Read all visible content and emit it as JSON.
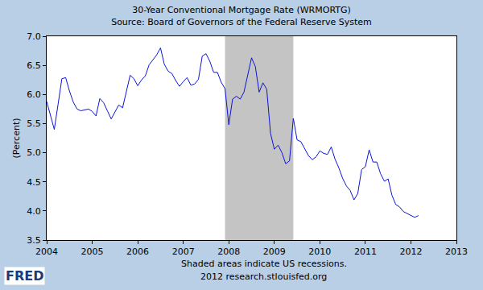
{
  "chart_data": {
    "type": "line",
    "title": "30-Year Conventional Mortgage Rate (WRMORTG)",
    "subtitle": "Source: Board of Governors of the Federal Reserve System",
    "y_label": "(Percent)",
    "notes": [
      "Shaded areas indicate US recessions.",
      "2012 research.stlouisfed.org"
    ],
    "logo": "FRED",
    "color": "#0a14d8",
    "grid": false,
    "x": [
      2004.0,
      2004.083,
      2004.167,
      2004.25,
      2004.333,
      2004.417,
      2004.5,
      2004.583,
      2004.667,
      2004.75,
      2004.833,
      2004.917,
      2005.0,
      2005.083,
      2005.167,
      2005.25,
      2005.333,
      2005.417,
      2005.5,
      2005.583,
      2005.667,
      2005.75,
      2005.833,
      2005.917,
      2006.0,
      2006.083,
      2006.167,
      2006.25,
      2006.333,
      2006.417,
      2006.5,
      2006.583,
      2006.667,
      2006.75,
      2006.833,
      2006.917,
      2007.0,
      2007.083,
      2007.167,
      2007.25,
      2007.333,
      2007.417,
      2007.5,
      2007.583,
      2007.667,
      2007.75,
      2007.833,
      2007.917,
      2008.0,
      2008.083,
      2008.167,
      2008.25,
      2008.333,
      2008.417,
      2008.5,
      2008.583,
      2008.667,
      2008.75,
      2008.833,
      2008.917,
      2009.0,
      2009.083,
      2009.167,
      2009.25,
      2009.333,
      2009.417,
      2009.5,
      2009.583,
      2009.667,
      2009.75,
      2009.833,
      2009.917,
      2010.0,
      2010.083,
      2010.167,
      2010.25,
      2010.333,
      2010.417,
      2010.5,
      2010.583,
      2010.667,
      2010.75,
      2010.833,
      2010.917,
      2011.0,
      2011.083,
      2011.167,
      2011.25,
      2011.333,
      2011.417,
      2011.5,
      2011.583,
      2011.667,
      2011.75,
      2011.833,
      2011.917,
      2012.0,
      2012.083,
      2012.167
    ],
    "values": [
      5.88,
      5.64,
      5.4,
      5.83,
      6.27,
      6.29,
      6.06,
      5.87,
      5.75,
      5.72,
      5.73,
      5.75,
      5.71,
      5.63,
      5.93,
      5.86,
      5.72,
      5.58,
      5.7,
      5.82,
      5.77,
      6.07,
      6.33,
      6.27,
      6.15,
      6.25,
      6.32,
      6.51,
      6.6,
      6.68,
      6.8,
      6.52,
      6.4,
      6.36,
      6.24,
      6.14,
      6.22,
      6.29,
      6.16,
      6.18,
      6.26,
      6.66,
      6.7,
      6.57,
      6.38,
      6.38,
      6.21,
      6.1,
      5.48,
      5.92,
      5.97,
      5.92,
      6.04,
      6.32,
      6.63,
      6.48,
      6.04,
      6.2,
      6.09,
      5.33,
      5.06,
      5.13,
      5.0,
      4.81,
      4.86,
      5.59,
      5.22,
      5.19,
      5.06,
      4.95,
      4.88,
      4.93,
      5.03,
      4.99,
      4.97,
      5.1,
      4.89,
      4.74,
      4.56,
      4.43,
      4.35,
      4.19,
      4.3,
      4.71,
      4.76,
      5.05,
      4.84,
      4.84,
      4.64,
      4.51,
      4.55,
      4.27,
      4.11,
      4.07,
      3.99,
      3.96,
      3.92,
      3.89,
      3.92
    ],
    "recessions": [
      {
        "start": 2007.917,
        "end": 2009.417
      }
    ],
    "xlim": [
      2004,
      2013
    ],
    "xticks": [
      2004,
      2005,
      2006,
      2007,
      2008,
      2009,
      2010,
      2011,
      2012,
      2013
    ],
    "ylim": [
      3.5,
      7.0
    ],
    "yticks": [
      3.5,
      {
        "value": 4,
        "label": "4.0"
      },
      4.5,
      {
        "value": 5,
        "label": "5.0"
      },
      5.5,
      {
        "value": 6,
        "label": "6.0"
      },
      6.5,
      {
        "value": 7,
        "label": "7.0"
      }
    ]
  }
}
